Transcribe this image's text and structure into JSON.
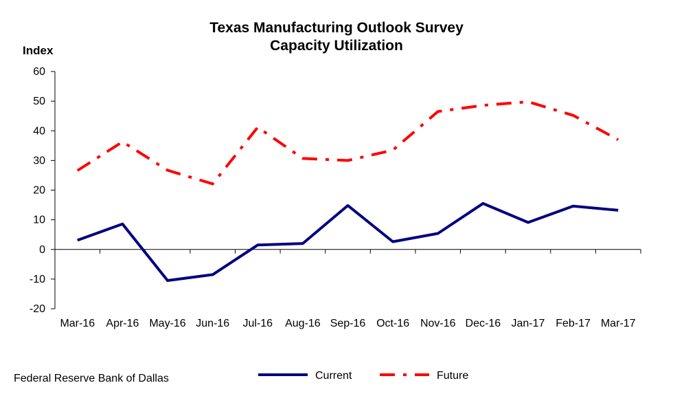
{
  "chart_data": {
    "type": "line",
    "title": "Texas Manufacturing Outlook Survey",
    "subtitle": "Capacity Utilization",
    "ylabel": "Index",
    "xlabel": "",
    "categories": [
      "Mar-16",
      "Apr-16",
      "May-16",
      "Jun-16",
      "Jul-16",
      "Aug-16",
      "Sep-16",
      "Oct-16",
      "Nov-16",
      "Dec-16",
      "Jan-17",
      "Feb-17",
      "Mar-17"
    ],
    "ylim": [
      -20,
      60
    ],
    "yticks": [
      -20,
      -10,
      0,
      10,
      20,
      30,
      40,
      50,
      60
    ],
    "grid": false,
    "legend_position": "bottom",
    "series": [
      {
        "name": "Current",
        "color": "#000080",
        "style": "solid",
        "values": [
          3.1,
          8.6,
          -10.5,
          -8.5,
          1.5,
          2.0,
          14.8,
          2.6,
          5.4,
          15.5,
          9.1,
          14.6,
          13.2
        ]
      },
      {
        "name": "Future",
        "color": "#ff0000",
        "style": "dash-dot",
        "values": [
          26.6,
          36.3,
          26.7,
          22.1,
          41.2,
          30.7,
          30.0,
          33.5,
          46.5,
          48.6,
          49.8,
          45.2,
          37.0
        ]
      }
    ]
  },
  "source": "Federal Reserve Bank of Dallas"
}
